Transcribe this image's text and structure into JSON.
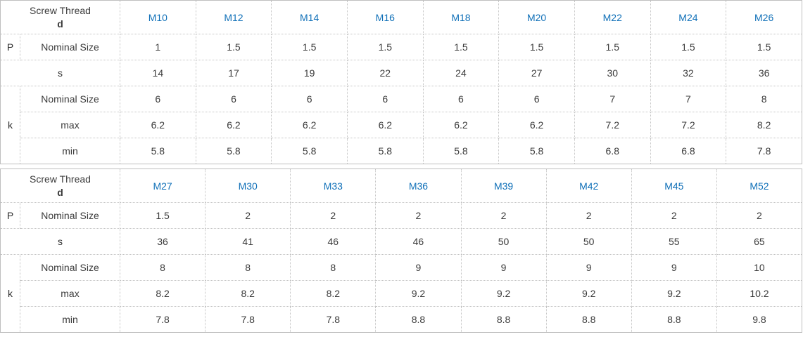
{
  "colors": {
    "corner_header_bg": "#e0e0e0",
    "column_header_bg": "#f0f0f0",
    "column_header_text": "#1070b8",
    "row_label_bg": "#f5f5f5",
    "cell_bg": "#ffffff",
    "border": "#c4c4c4",
    "text": "#3b3b3b"
  },
  "labels": {
    "corner_line1": "Screw Thread",
    "corner_line2": "d",
    "p": "P",
    "s": "s",
    "k": "k",
    "nominal_size": "Nominal Size",
    "max": "max",
    "min": "min"
  },
  "tables": [
    {
      "columns": [
        "M10",
        "M12",
        "M14",
        "M16",
        "M18",
        "M20",
        "M22",
        "M24",
        "M26"
      ],
      "p_nominal_size": [
        "1",
        "1.5",
        "1.5",
        "1.5",
        "1.5",
        "1.5",
        "1.5",
        "1.5",
        "1.5"
      ],
      "s_values": [
        "14",
        "17",
        "19",
        "22",
        "24",
        "27",
        "30",
        "32",
        "36"
      ],
      "k_nominal_size": [
        "6",
        "6",
        "6",
        "6",
        "6",
        "6",
        "7",
        "7",
        "8"
      ],
      "k_max": [
        "6.2",
        "6.2",
        "6.2",
        "6.2",
        "6.2",
        "6.2",
        "7.2",
        "7.2",
        "8.2"
      ],
      "k_min": [
        "5.8",
        "5.8",
        "5.8",
        "5.8",
        "5.8",
        "5.8",
        "6.8",
        "6.8",
        "7.8"
      ]
    },
    {
      "columns": [
        "M27",
        "M30",
        "M33",
        "M36",
        "M39",
        "M42",
        "M45",
        "M52"
      ],
      "p_nominal_size": [
        "1.5",
        "2",
        "2",
        "2",
        "2",
        "2",
        "2",
        "2"
      ],
      "s_values": [
        "36",
        "41",
        "46",
        "46",
        "50",
        "50",
        "55",
        "65"
      ],
      "k_nominal_size": [
        "8",
        "8",
        "8",
        "9",
        "9",
        "9",
        "9",
        "10"
      ],
      "k_max": [
        "8.2",
        "8.2",
        "8.2",
        "9.2",
        "9.2",
        "9.2",
        "9.2",
        "10.2"
      ],
      "k_min": [
        "7.8",
        "7.8",
        "7.8",
        "8.8",
        "8.8",
        "8.8",
        "8.8",
        "9.8"
      ]
    }
  ]
}
